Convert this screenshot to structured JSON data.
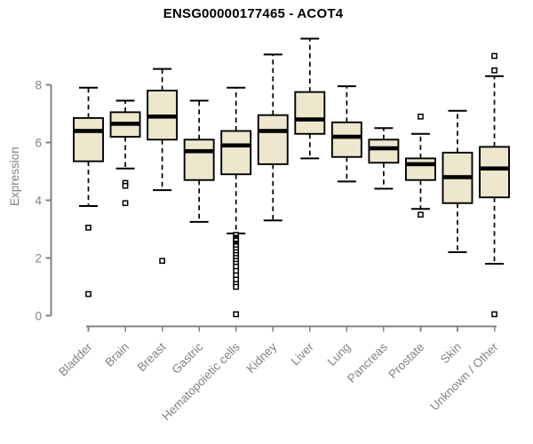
{
  "chart_data": {
    "type": "boxplot",
    "title": "ENSG00000177465 - ACOT4",
    "xlabel": "",
    "ylabel": "Expression",
    "yticks": [
      0,
      2,
      4,
      6,
      8
    ],
    "ylim": [
      0,
      9.8
    ],
    "grid": false,
    "x_label_rotation": 45,
    "categories": [
      "Bladder",
      "Brain",
      "Breast",
      "Gastric",
      "Hematopoietic cells",
      "Kidney",
      "Liver",
      "Lung",
      "Pancreas",
      "Prostate",
      "Skin",
      "Unknown / Other"
    ],
    "series": [
      {
        "category": "Bladder",
        "whisker_low": 3.8,
        "q1": 5.35,
        "median": 6.4,
        "q3": 6.85,
        "whisker_high": 7.9,
        "outliers": [
          3.05,
          0.75
        ]
      },
      {
        "category": "Brain",
        "whisker_low": 5.1,
        "q1": 6.2,
        "median": 6.65,
        "q3": 7.05,
        "whisker_high": 7.45,
        "outliers": [
          4.6,
          4.5,
          3.9
        ]
      },
      {
        "category": "Breast",
        "whisker_low": 4.35,
        "q1": 6.1,
        "median": 6.9,
        "q3": 7.8,
        "whisker_high": 8.55,
        "outliers": [
          1.9
        ]
      },
      {
        "category": "Gastric",
        "whisker_low": 3.25,
        "q1": 4.7,
        "median": 5.7,
        "q3": 6.1,
        "whisker_high": 7.45,
        "outliers": []
      },
      {
        "category": "Hematopoietic cells",
        "whisker_low": 2.85,
        "q1": 4.9,
        "median": 5.9,
        "q3": 6.4,
        "whisker_high": 7.9,
        "outliers": [
          2.8,
          2.7,
          2.65,
          2.6,
          2.5,
          2.45,
          2.4,
          2.3,
          2.2,
          2.1,
          2.0,
          1.9,
          1.8,
          1.7,
          1.55,
          1.4,
          1.25,
          1.1,
          1.0,
          0.05
        ]
      },
      {
        "category": "Kidney",
        "whisker_low": 3.3,
        "q1": 5.25,
        "median": 6.4,
        "q3": 6.95,
        "whisker_high": 9.05,
        "outliers": []
      },
      {
        "category": "Liver",
        "whisker_low": 5.45,
        "q1": 6.3,
        "median": 6.8,
        "q3": 7.75,
        "whisker_high": 9.6,
        "outliers": []
      },
      {
        "category": "Lung",
        "whisker_low": 4.65,
        "q1": 5.5,
        "median": 6.2,
        "q3": 6.7,
        "whisker_high": 7.95,
        "outliers": []
      },
      {
        "category": "Pancreas",
        "whisker_low": 4.4,
        "q1": 5.3,
        "median": 5.8,
        "q3": 6.1,
        "whisker_high": 6.5,
        "outliers": []
      },
      {
        "category": "Prostate",
        "whisker_low": 3.7,
        "q1": 4.7,
        "median": 5.25,
        "q3": 5.45,
        "whisker_high": 6.3,
        "outliers": [
          6.9,
          3.5
        ]
      },
      {
        "category": "Skin",
        "whisker_low": 2.2,
        "q1": 3.9,
        "median": 4.8,
        "q3": 5.65,
        "whisker_high": 7.1,
        "outliers": []
      },
      {
        "category": "Unknown / Other",
        "whisker_low": 1.8,
        "q1": 4.1,
        "median": 5.1,
        "q3": 5.85,
        "whisker_high": 8.3,
        "outliers": [
          9.0,
          8.5,
          0.05
        ]
      }
    ],
    "colors": {
      "box_fill": "#EDE7CD",
      "box_border": "#000000",
      "median": "#000000",
      "whisker": "#000000",
      "outlier_stroke": "#000000",
      "outlier_fill": "#FFFFFF",
      "axis_line": "#828282",
      "axis_text": "#828282",
      "title": "#000000",
      "background": "#FFFFFF"
    }
  }
}
